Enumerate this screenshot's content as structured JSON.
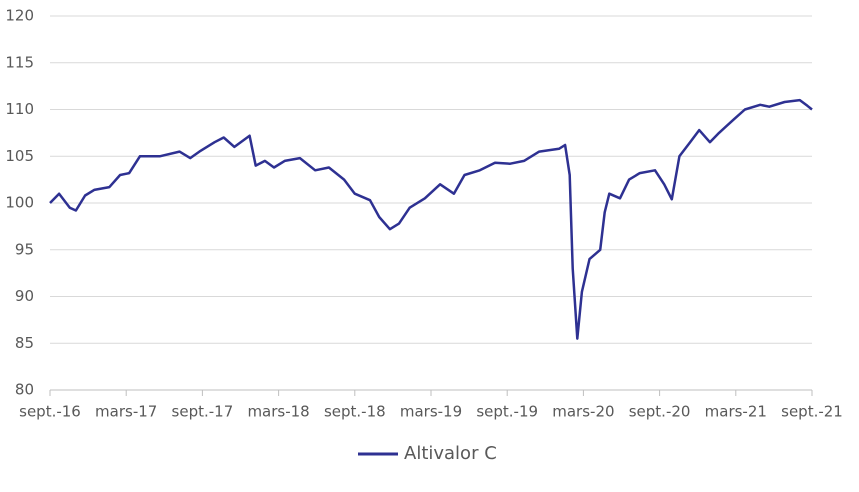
{
  "chart_data": {
    "type": "line",
    "x": [
      2016.67,
      2016.73,
      2016.8,
      2016.84,
      2016.9,
      2016.96,
      2017.06,
      2017.13,
      2017.19,
      2017.26,
      2017.39,
      2017.52,
      2017.59,
      2017.65,
      2017.75,
      2017.81,
      2017.88,
      2017.98,
      2018.02,
      2018.08,
      2018.14,
      2018.21,
      2018.31,
      2018.41,
      2018.5,
      2018.6,
      2018.67,
      2018.77,
      2018.83,
      2018.9,
      2018.96,
      2019.03,
      2019.13,
      2019.23,
      2019.32,
      2019.39,
      2019.49,
      2019.59,
      2019.69,
      2019.78,
      2019.88,
      2020.01,
      2020.05,
      2020.08,
      2020.1,
      2020.13,
      2020.16,
      2020.21,
      2020.28,
      2020.31,
      2020.34,
      2020.41,
      2020.47,
      2020.54,
      2020.64,
      2020.7,
      2020.75,
      2020.8,
      2020.87,
      2020.93,
      2021.0,
      2021.06,
      2021.16,
      2021.23,
      2021.33,
      2021.39,
      2021.49,
      2021.59,
      2021.64,
      2021.67
    ],
    "series": [
      {
        "name": "Altivalor C",
        "color": "#2e3192",
        "values": [
          100,
          101,
          99.5,
          99.2,
          100.8,
          101.4,
          101.7,
          103,
          103.2,
          105,
          105,
          105.5,
          104.8,
          105.5,
          106.5,
          107,
          106,
          107.2,
          104,
          104.5,
          103.8,
          104.5,
          104.8,
          103.5,
          103.8,
          102.5,
          101,
          100.3,
          98.5,
          97.2,
          97.8,
          99.5,
          100.5,
          102,
          101,
          103,
          103.5,
          104.3,
          104.2,
          104.5,
          105.5,
          105.8,
          106.2,
          103,
          93,
          85.5,
          90.5,
          94,
          95,
          99,
          101,
          100.5,
          102.5,
          103.2,
          103.5,
          102,
          100.4,
          105,
          106.5,
          107.8,
          106.5,
          107.5,
          109,
          110,
          110.5,
          110.3,
          110.8,
          111,
          110.4,
          110
        ]
      }
    ],
    "xlim": [
      2016.67,
      2021.67
    ],
    "xticks": [
      {
        "value": 2016.67,
        "label": "sept.-16"
      },
      {
        "value": 2017.17,
        "label": "mars-17"
      },
      {
        "value": 2017.67,
        "label": "sept.-17"
      },
      {
        "value": 2018.17,
        "label": "mars-18"
      },
      {
        "value": 2018.67,
        "label": "sept.-18"
      },
      {
        "value": 2019.17,
        "label": "mars-19"
      },
      {
        "value": 2019.67,
        "label": "sept.-19"
      },
      {
        "value": 2020.17,
        "label": "mars-20"
      },
      {
        "value": 2020.67,
        "label": "sept.-20"
      },
      {
        "value": 2021.17,
        "label": "mars-21"
      },
      {
        "value": 2021.67,
        "label": "sept.-21"
      }
    ],
    "ylim": [
      80,
      120
    ],
    "yticks": [
      80,
      85,
      90,
      95,
      100,
      105,
      110,
      115,
      120
    ],
    "grid": true
  }
}
